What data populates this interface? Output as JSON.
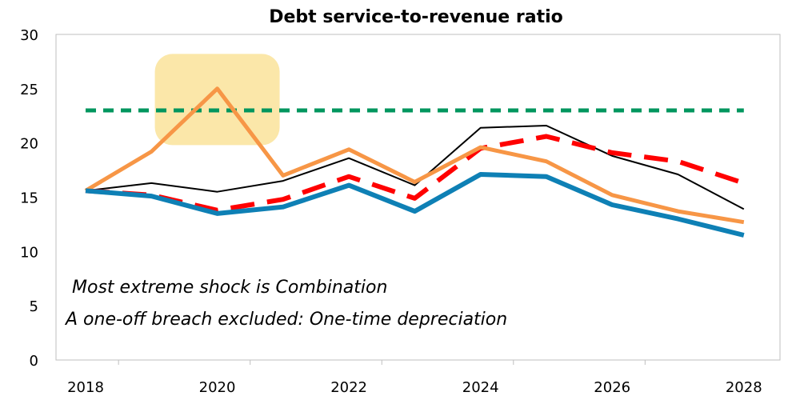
{
  "chart_data": {
    "type": "line",
    "title": "Debt service-to-revenue ratio",
    "xlabel": "",
    "ylabel": "",
    "x": [
      2018,
      2019,
      2020,
      2021,
      2022,
      2023,
      2024,
      2025,
      2026,
      2027,
      2028
    ],
    "x_tick_labels": [
      "2018",
      "2020",
      "2022",
      "2024",
      "2026",
      "2028"
    ],
    "y_tick_labels": [
      "0",
      "5",
      "10",
      "15",
      "20",
      "25",
      "30"
    ],
    "xlim": [
      2017.55,
      2028.55
    ],
    "ylim": [
      0,
      30
    ],
    "grid": false,
    "legend": "none",
    "highlight_years": [
      2020
    ],
    "series": [
      {
        "color": "#00965e",
        "style": "dashed",
        "values": [
          23,
          23,
          23,
          23,
          23,
          23,
          23,
          23,
          23,
          23,
          23
        ]
      },
      {
        "color": "#000000",
        "style": "solid",
        "values": [
          15.6,
          16.3,
          15.5,
          16.5,
          18.6,
          16.1,
          21.4,
          21.6,
          18.8,
          17.1,
          13.9
        ]
      },
      {
        "color": "#ff0000",
        "style": "dashed",
        "values": [
          15.6,
          15.2,
          13.8,
          14.8,
          16.9,
          14.9,
          19.5,
          20.6,
          19.1,
          18.3,
          16.3
        ]
      },
      {
        "color": "#f79646",
        "style": "solid",
        "values": [
          15.6,
          19.2,
          25.0,
          17.0,
          19.4,
          16.4,
          19.6,
          18.3,
          15.2,
          13.7,
          12.7
        ]
      },
      {
        "color": "#0e80b5",
        "style": "solid",
        "values": [
          15.6,
          15.1,
          13.5,
          14.1,
          16.1,
          13.7,
          17.1,
          16.9,
          14.3,
          13.0,
          11.5
        ]
      }
    ],
    "annotations": [
      "Most extreme shock is Combination",
      "A one-off breach excluded: One-time depreciation"
    ]
  },
  "colors": {
    "highlight": "#fbe7a9",
    "axis": "#bfbfbf"
  }
}
